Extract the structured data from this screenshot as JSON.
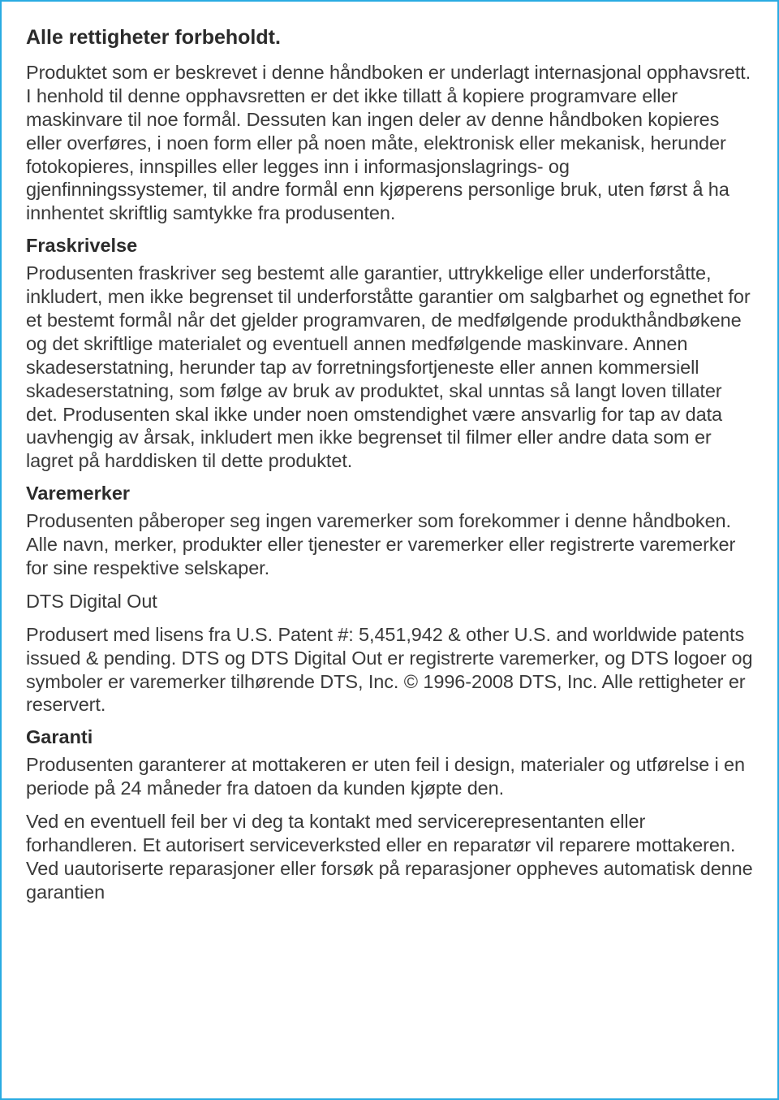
{
  "title": "Alle rettigheter forbeholdt.",
  "p1": "Produktet som er beskrevet i denne håndboken er underlagt internasjonal opphavsrett. I henhold til denne opphavsretten er det ikke tillatt å kopiere programvare eller maskinvare til noe formål. Dessuten kan ingen deler av denne håndboken kopieres eller overføres, i noen form eller på noen måte, elektronisk eller mekanisk, herunder fotokopieres, innspilles eller legges inn i informasjonslagrings- og gjenfinningssystemer, til andre formål enn kjøperens personlige bruk, uten først å ha innhentet skriftlig samtykke fra produsenten.",
  "h2": "Fraskrivelse",
  "p2": "Produsenten fraskriver seg bestemt alle garantier, uttrykkelige eller underforståtte, inkludert, men ikke begrenset til underforståtte garantier om salgbarhet og egnethet for et bestemt formål når det gjelder programvaren, de medfølgende produkthåndbøkene og det skriftlige materialet og eventuell annen medfølgende maskinvare. Annen skadeserstatning, herunder tap av forretningsfortjeneste eller annen kommersiell skadeserstatning, som følge av bruk av produktet, skal unntas så langt loven tillater det. Produsenten skal ikke under noen omstendighet være ansvarlig for tap av data uavhengig av årsak, inkludert men ikke begrenset til filmer eller andre data som er lagret på harddisken til dette produktet.",
  "h3": "Varemerker",
  "p3": "Produsenten påberoper seg ingen varemerker som forekommer i denne håndboken. Alle navn, merker, produkter eller tjenester er varemerker eller registrerte varemerker for sine respektive selskaper.",
  "p4": "DTS Digital Out",
  "p5": "Produsert med lisens fra U.S. Patent #: 5,451,942 & other U.S. and worldwide patents issued & pending. DTS og DTS Digital Out er registrerte varemerker, og DTS logoer og symboler er varemerker tilhørende DTS, Inc. © 1996-2008 DTS, Inc. Alle rettigheter er reservert.",
  "h4": "Garanti",
  "p6": "Produsenten garanterer at mottakeren er uten feil i design, materialer og utførelse i en periode på 24 måneder fra datoen da kunden kjøpte den.",
  "p7": "Ved en eventuell feil ber vi deg ta kontakt med servicerepresentanten eller forhandleren. Et autorisert serviceverksted eller en reparatør vil reparere mottakeren. Ved uautoriserte reparasjoner eller forsøk på reparasjoner oppheves automatisk denne garantien"
}
